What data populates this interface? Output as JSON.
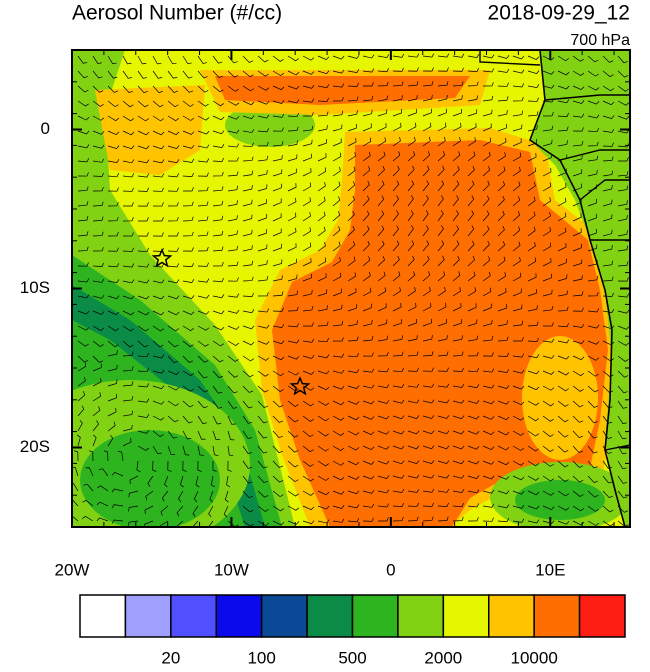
{
  "map": {
    "title": "Aerosol Number (#/cc)",
    "date": "2018-09-29_12",
    "level": "700 hPa",
    "xlim": [
      -20,
      15
    ],
    "ylim": [
      -25,
      5
    ],
    "xticks": [
      {
        "value": -20,
        "label": "20W"
      },
      {
        "value": -10,
        "label": "10W"
      },
      {
        "value": 0,
        "label": "0"
      },
      {
        "value": 10,
        "label": "10E"
      }
    ],
    "yticks": [
      {
        "value": 0,
        "label": "0"
      },
      {
        "value": -10,
        "label": "10S"
      },
      {
        "value": -20,
        "label": "20S"
      }
    ],
    "colorbar": {
      "colors": [
        "#ffffff",
        "#a0a0ff",
        "#5050ff",
        "#0a0aeb",
        "#0a4a96",
        "#0a8c46",
        "#2db41e",
        "#82d214",
        "#e6f500",
        "#ffc300",
        "#ff6e00",
        "#ff1e14"
      ],
      "labels": [
        20,
        100,
        500,
        2000,
        10000
      ]
    }
  }
}
